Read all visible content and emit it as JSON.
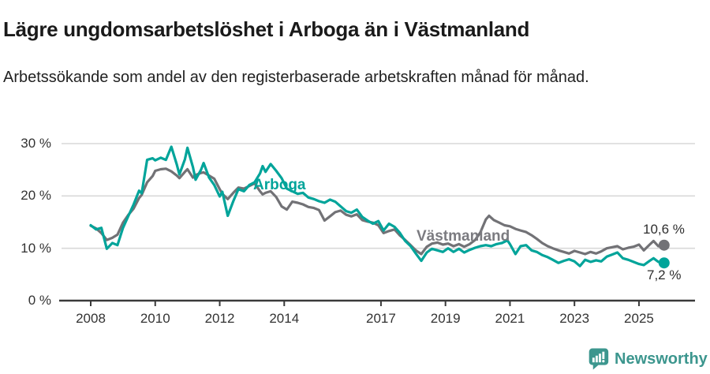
{
  "header": {
    "title": "Lägre ungdomsarbetslöshet i Arboga än i Västmanland",
    "subtitle": "Arbetssökande som andel av den registerbaserade arbetskraften månad för månad."
  },
  "chart_data": {
    "type": "line",
    "title": "Lägre ungdomsarbetslöshet i Arboga än i Västmanland",
    "xlabel": "",
    "ylabel": "",
    "y_unit": "%",
    "ylim": [
      0,
      30
    ],
    "xlim": [
      2008,
      2025.9
    ],
    "grid": "horizontal",
    "grid_color": "#d8d8d8",
    "axis_color": "#3a3a3a",
    "legend": "inline-labels",
    "y_ticks": [
      {
        "value": 0,
        "label": "0 %"
      },
      {
        "value": 10,
        "label": "10 %"
      },
      {
        "value": 20,
        "label": "20 %"
      },
      {
        "value": 30,
        "label": "30 %"
      }
    ],
    "x_ticks": [
      {
        "value": 2008,
        "label": "2008"
      },
      {
        "value": 2010,
        "label": "2010"
      },
      {
        "value": 2012,
        "label": "2012"
      },
      {
        "value": 2014,
        "label": "2014"
      },
      {
        "value": 2017,
        "label": "2017"
      },
      {
        "value": 2019,
        "label": "2019"
      },
      {
        "value": 2021,
        "label": "2021"
      },
      {
        "value": 2023,
        "label": "2023"
      },
      {
        "value": 2025,
        "label": "2025"
      }
    ],
    "series": [
      {
        "id": "arboga",
        "name": "Arboga",
        "color": "#00a49a",
        "end_label": "7,2 %",
        "end_value": 7.2,
        "points": [
          [
            2008.0,
            14.4
          ],
          [
            2008.17,
            13.6
          ],
          [
            2008.33,
            13.9
          ],
          [
            2008.5,
            9.9
          ],
          [
            2008.67,
            11.0
          ],
          [
            2008.83,
            10.6
          ],
          [
            2009.0,
            13.9
          ],
          [
            2009.17,
            16.2
          ],
          [
            2009.33,
            18.4
          ],
          [
            2009.5,
            21.0
          ],
          [
            2009.58,
            20.5
          ],
          [
            2009.75,
            26.9
          ],
          [
            2009.92,
            27.2
          ],
          [
            2010.0,
            26.8
          ],
          [
            2010.17,
            27.3
          ],
          [
            2010.33,
            26.9
          ],
          [
            2010.5,
            29.4
          ],
          [
            2010.67,
            26.0
          ],
          [
            2010.75,
            24.1
          ],
          [
            2010.92,
            27.0
          ],
          [
            2011.0,
            29.2
          ],
          [
            2011.17,
            25.5
          ],
          [
            2011.25,
            23.1
          ],
          [
            2011.42,
            25.0
          ],
          [
            2011.5,
            26.3
          ],
          [
            2011.67,
            23.5
          ],
          [
            2011.83,
            22.1
          ],
          [
            2012.0,
            19.9
          ],
          [
            2012.08,
            20.8
          ],
          [
            2012.25,
            16.2
          ],
          [
            2012.42,
            19.0
          ],
          [
            2012.58,
            21.3
          ],
          [
            2012.75,
            20.9
          ],
          [
            2012.92,
            22.1
          ],
          [
            2013.08,
            22.6
          ],
          [
            2013.25,
            24.3
          ],
          [
            2013.33,
            25.7
          ],
          [
            2013.42,
            24.6
          ],
          [
            2013.58,
            26.1
          ],
          [
            2013.75,
            24.8
          ],
          [
            2013.92,
            23.4
          ],
          [
            2014.08,
            21.4
          ],
          [
            2014.25,
            20.9
          ],
          [
            2014.42,
            20.4
          ],
          [
            2014.58,
            20.6
          ],
          [
            2014.75,
            19.7
          ],
          [
            2014.92,
            19.4
          ],
          [
            2015.08,
            19.0
          ],
          [
            2015.25,
            18.7
          ],
          [
            2015.42,
            19.3
          ],
          [
            2015.58,
            18.9
          ],
          [
            2015.75,
            18.0
          ],
          [
            2015.92,
            17.1
          ],
          [
            2016.08,
            16.8
          ],
          [
            2016.25,
            17.4
          ],
          [
            2016.42,
            16.0
          ],
          [
            2016.58,
            15.3
          ],
          [
            2016.75,
            14.7
          ],
          [
            2016.92,
            15.2
          ],
          [
            2017.08,
            13.4
          ],
          [
            2017.25,
            14.7
          ],
          [
            2017.42,
            14.1
          ],
          [
            2017.58,
            13.0
          ],
          [
            2017.75,
            11.4
          ],
          [
            2017.92,
            10.4
          ],
          [
            2018.08,
            9.0
          ],
          [
            2018.25,
            7.6
          ],
          [
            2018.42,
            9.2
          ],
          [
            2018.58,
            9.9
          ],
          [
            2018.75,
            9.6
          ],
          [
            2018.92,
            9.3
          ],
          [
            2019.08,
            10.0
          ],
          [
            2019.25,
            9.3
          ],
          [
            2019.42,
            9.9
          ],
          [
            2019.58,
            9.2
          ],
          [
            2019.75,
            9.7
          ],
          [
            2019.92,
            10.1
          ],
          [
            2020.08,
            10.4
          ],
          [
            2020.25,
            10.6
          ],
          [
            2020.42,
            10.4
          ],
          [
            2020.58,
            10.8
          ],
          [
            2020.75,
            11.0
          ],
          [
            2020.92,
            11.5
          ],
          [
            2021.0,
            10.8
          ],
          [
            2021.17,
            8.9
          ],
          [
            2021.33,
            10.4
          ],
          [
            2021.5,
            10.6
          ],
          [
            2021.67,
            9.6
          ],
          [
            2021.83,
            9.3
          ],
          [
            2022.0,
            8.7
          ],
          [
            2022.17,
            8.3
          ],
          [
            2022.33,
            7.8
          ],
          [
            2022.5,
            7.2
          ],
          [
            2022.67,
            7.6
          ],
          [
            2022.83,
            7.9
          ],
          [
            2023.0,
            7.5
          ],
          [
            2023.17,
            6.6
          ],
          [
            2023.33,
            7.8
          ],
          [
            2023.5,
            7.4
          ],
          [
            2023.67,
            7.7
          ],
          [
            2023.83,
            7.5
          ],
          [
            2024.0,
            8.4
          ],
          [
            2024.17,
            8.8
          ],
          [
            2024.33,
            9.2
          ],
          [
            2024.5,
            8.1
          ],
          [
            2024.67,
            7.8
          ],
          [
            2024.83,
            7.4
          ],
          [
            2025.0,
            7.0
          ],
          [
            2025.15,
            6.8
          ],
          [
            2025.33,
            7.6
          ],
          [
            2025.45,
            8.1
          ],
          [
            2025.6,
            7.4
          ],
          [
            2025.78,
            7.2
          ]
        ]
      },
      {
        "id": "vastmanland",
        "name": "Västmanland",
        "color": "#727276",
        "label_color": "#7b7b80",
        "end_label": "10,6 %",
        "end_value": 10.6,
        "points": [
          [
            2008.0,
            14.3
          ],
          [
            2008.17,
            13.8
          ],
          [
            2008.33,
            12.9
          ],
          [
            2008.5,
            11.6
          ],
          [
            2008.67,
            12.0
          ],
          [
            2008.83,
            12.6
          ],
          [
            2009.0,
            14.9
          ],
          [
            2009.17,
            16.4
          ],
          [
            2009.33,
            17.6
          ],
          [
            2009.5,
            19.6
          ],
          [
            2009.58,
            20.2
          ],
          [
            2009.75,
            22.6
          ],
          [
            2009.92,
            23.8
          ],
          [
            2010.0,
            24.8
          ],
          [
            2010.17,
            25.1
          ],
          [
            2010.33,
            25.2
          ],
          [
            2010.5,
            24.7
          ],
          [
            2010.67,
            23.9
          ],
          [
            2010.75,
            23.4
          ],
          [
            2010.92,
            24.6
          ],
          [
            2011.0,
            25.1
          ],
          [
            2011.17,
            23.5
          ],
          [
            2011.25,
            24.0
          ],
          [
            2011.42,
            24.4
          ],
          [
            2011.5,
            24.5
          ],
          [
            2011.67,
            23.9
          ],
          [
            2011.83,
            23.3
          ],
          [
            2012.0,
            21.3
          ],
          [
            2012.08,
            20.4
          ],
          [
            2012.25,
            19.4
          ],
          [
            2012.42,
            20.6
          ],
          [
            2012.58,
            21.6
          ],
          [
            2012.75,
            21.4
          ],
          [
            2012.92,
            21.9
          ],
          [
            2013.08,
            22.4
          ],
          [
            2013.25,
            20.9
          ],
          [
            2013.33,
            20.3
          ],
          [
            2013.42,
            20.6
          ],
          [
            2013.58,
            20.9
          ],
          [
            2013.75,
            19.8
          ],
          [
            2013.92,
            18.0
          ],
          [
            2014.08,
            17.4
          ],
          [
            2014.25,
            18.9
          ],
          [
            2014.42,
            18.7
          ],
          [
            2014.58,
            18.4
          ],
          [
            2014.75,
            17.9
          ],
          [
            2014.92,
            17.7
          ],
          [
            2015.08,
            17.3
          ],
          [
            2015.25,
            15.3
          ],
          [
            2015.42,
            16.1
          ],
          [
            2015.58,
            16.9
          ],
          [
            2015.75,
            17.2
          ],
          [
            2015.92,
            16.4
          ],
          [
            2016.08,
            16.1
          ],
          [
            2016.25,
            16.5
          ],
          [
            2016.42,
            15.4
          ],
          [
            2016.58,
            15.1
          ],
          [
            2016.75,
            14.9
          ],
          [
            2016.92,
            14.4
          ],
          [
            2017.08,
            12.9
          ],
          [
            2017.25,
            13.3
          ],
          [
            2017.42,
            13.6
          ],
          [
            2017.58,
            12.5
          ],
          [
            2017.75,
            11.6
          ],
          [
            2017.92,
            10.6
          ],
          [
            2018.08,
            9.6
          ],
          [
            2018.25,
            8.9
          ],
          [
            2018.42,
            10.3
          ],
          [
            2018.58,
            10.9
          ],
          [
            2018.75,
            11.1
          ],
          [
            2018.92,
            10.7
          ],
          [
            2019.08,
            10.9
          ],
          [
            2019.25,
            10.4
          ],
          [
            2019.42,
            10.8
          ],
          [
            2019.58,
            10.3
          ],
          [
            2019.75,
            10.8
          ],
          [
            2019.92,
            11.6
          ],
          [
            2020.08,
            13.0
          ],
          [
            2020.25,
            15.5
          ],
          [
            2020.35,
            16.2
          ],
          [
            2020.5,
            15.4
          ],
          [
            2020.67,
            14.9
          ],
          [
            2020.83,
            14.4
          ],
          [
            2021.0,
            14.2
          ],
          [
            2021.17,
            13.7
          ],
          [
            2021.33,
            13.4
          ],
          [
            2021.5,
            13.1
          ],
          [
            2021.67,
            12.5
          ],
          [
            2021.83,
            11.8
          ],
          [
            2022.0,
            11.0
          ],
          [
            2022.17,
            10.4
          ],
          [
            2022.33,
            10.0
          ],
          [
            2022.5,
            9.6
          ],
          [
            2022.67,
            9.3
          ],
          [
            2022.83,
            9.0
          ],
          [
            2023.0,
            9.5
          ],
          [
            2023.17,
            9.2
          ],
          [
            2023.33,
            8.9
          ],
          [
            2023.5,
            9.3
          ],
          [
            2023.67,
            9.0
          ],
          [
            2023.83,
            9.4
          ],
          [
            2024.0,
            10.0
          ],
          [
            2024.17,
            10.2
          ],
          [
            2024.33,
            10.4
          ],
          [
            2024.5,
            9.8
          ],
          [
            2024.67,
            10.1
          ],
          [
            2024.83,
            10.3
          ],
          [
            2025.0,
            10.7
          ],
          [
            2025.15,
            9.6
          ],
          [
            2025.33,
            10.7
          ],
          [
            2025.45,
            11.4
          ],
          [
            2025.6,
            10.4
          ],
          [
            2025.78,
            10.6
          ]
        ]
      }
    ]
  },
  "footer": {
    "brand": "Newsworthy",
    "brand_color": "#3c968e"
  },
  "colors": {
    "accent_teal": "#00a49a",
    "series_gray": "#727276",
    "text_dark": "#1a1a1a",
    "gridline": "#d8d8d8"
  }
}
